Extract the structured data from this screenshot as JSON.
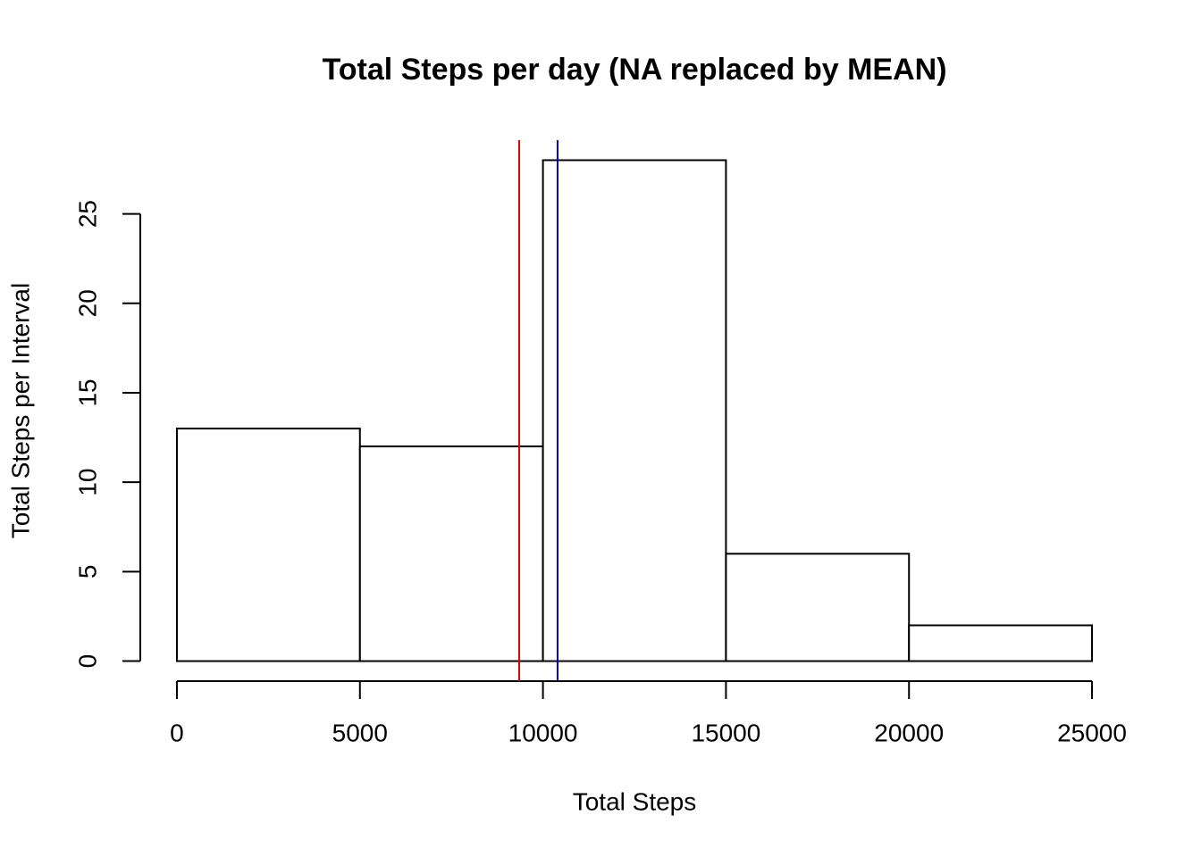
{
  "chart_data": {
    "type": "histogram",
    "title": "Total Steps per day (NA replaced by MEAN)",
    "xlabel": "Total Steps",
    "ylabel": "Total Steps per Interval",
    "bins": [
      0,
      5000,
      10000,
      15000,
      20000,
      25000
    ],
    "values": [
      13,
      12,
      28,
      6,
      2
    ],
    "color": "#ffffff",
    "edgecolor": "#000000",
    "xlim": [
      -1000,
      26000
    ],
    "ylim": [
      -1.12,
      29.12
    ],
    "xticks": [
      0,
      5000,
      10000,
      15000,
      20000,
      25000
    ],
    "yticks": [
      0,
      5,
      10,
      15,
      20,
      25
    ],
    "vlines": [
      {
        "value": 9350,
        "color": "#e00000"
      },
      {
        "value": 10400,
        "color": "#0000c0"
      }
    ],
    "grid": false
  }
}
